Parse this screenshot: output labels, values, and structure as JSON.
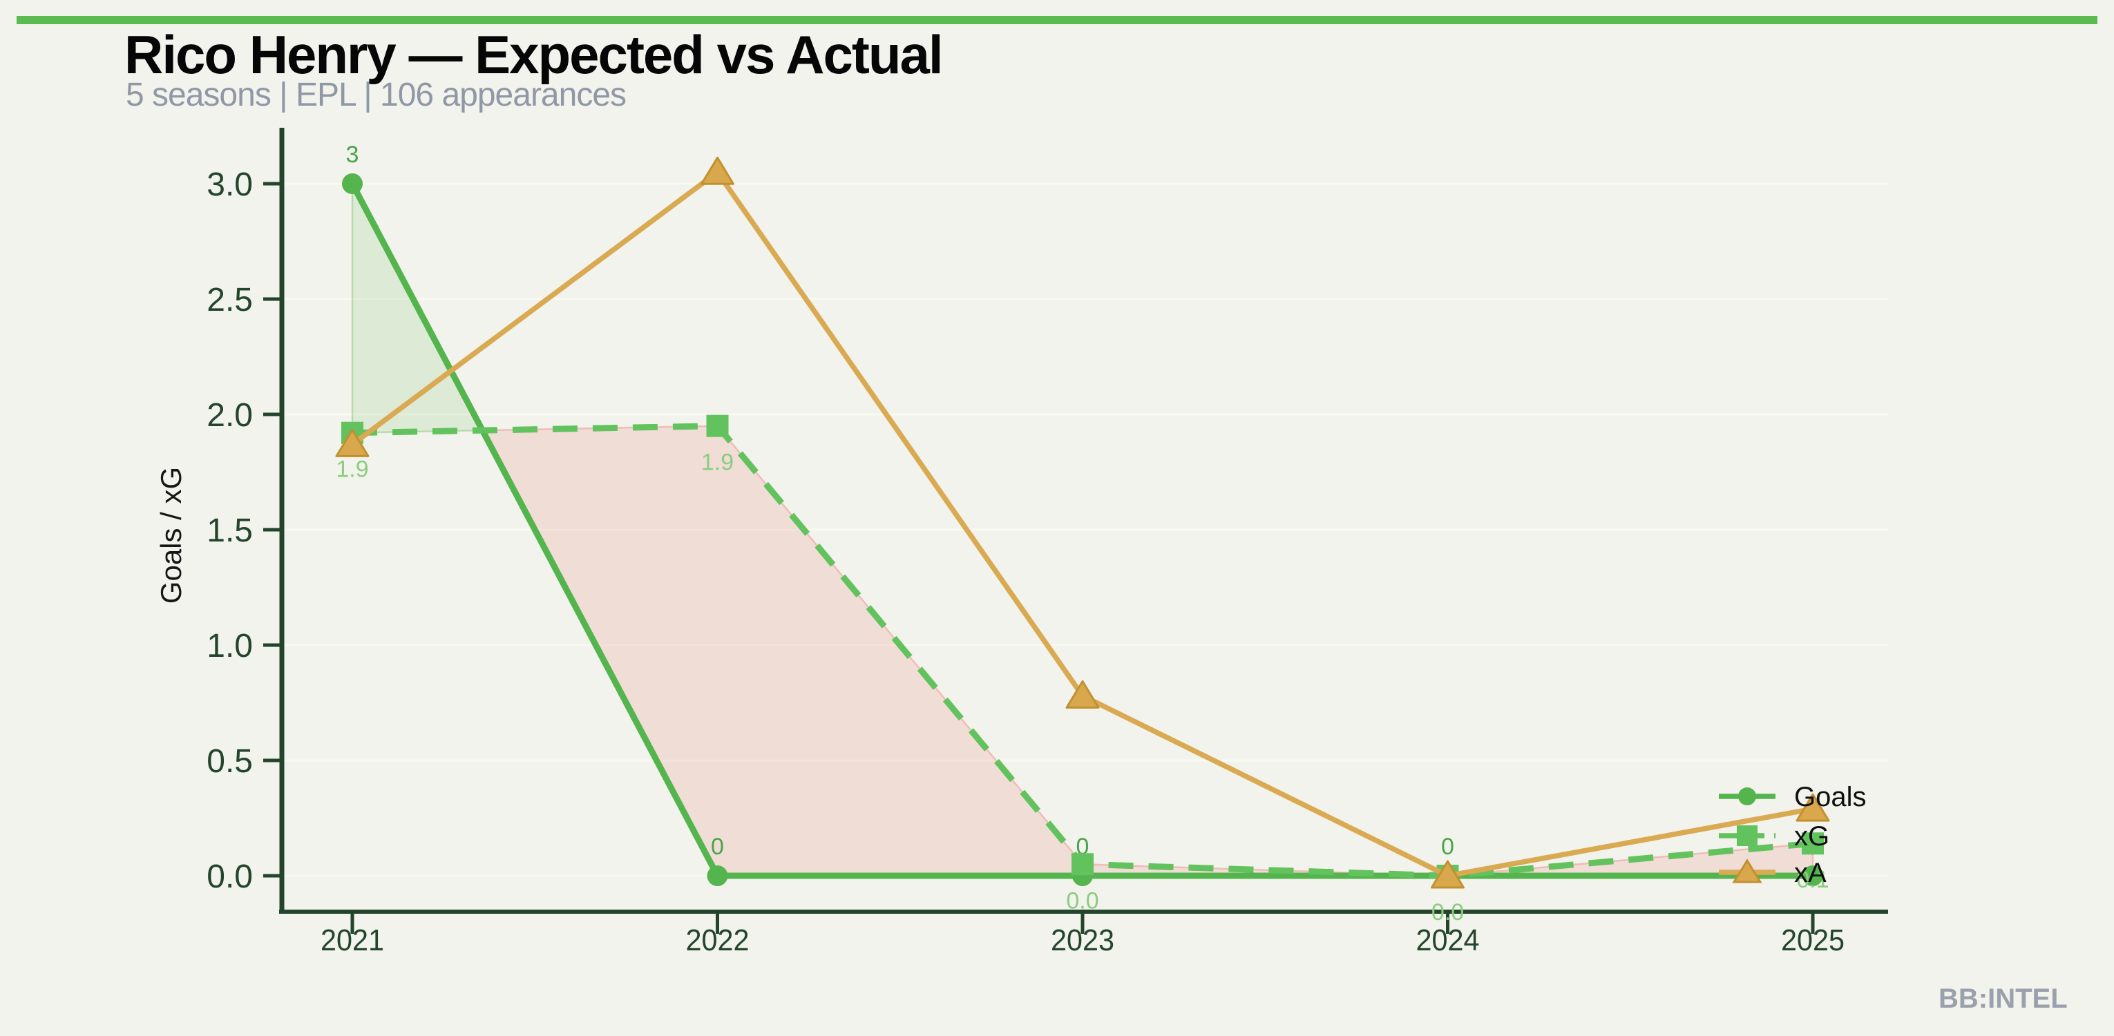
{
  "page": {
    "background": "#f2f3ec",
    "accent_bar_color": "#5bbb50",
    "watermark": "BB:INTEL"
  },
  "header": {
    "title": "Rico Henry — Expected vs Actual",
    "subtitle": "5 seasons | EPL | 106 appearances"
  },
  "chart_data": {
    "type": "line",
    "title": "Rico Henry — Expected vs Actual",
    "x": [
      2021,
      2022,
      2023,
      2024,
      2025
    ],
    "series": [
      {
        "name": "Goals",
        "values": [
          3,
          0,
          0,
          0,
          0
        ],
        "labels": [
          "3",
          "0",
          "0",
          "0",
          "0"
        ],
        "label_side": "above",
        "label_color": "#4ba44a",
        "color": "#54b44e",
        "marker": "circle",
        "style": "solid"
      },
      {
        "name": "xG",
        "values": [
          1.92,
          1.95,
          0.05,
          0.0,
          0.14
        ],
        "labels": [
          "1.9",
          "1.9",
          "0.0",
          "0.0",
          "0.1"
        ],
        "label_side": "below",
        "label_color": "#8bcd7f",
        "color": "#62c25d",
        "marker": "square",
        "style": "dashed"
      },
      {
        "name": "xA",
        "values": [
          1.87,
          3.05,
          0.78,
          0.0,
          0.29
        ],
        "labels": [],
        "label_side": "below",
        "label_color": "#d9a84c",
        "color": "#d9aa52",
        "marker": "triangle",
        "marker_fill": "#d9a84c",
        "marker_edge": "#c2912f",
        "style": "solid"
      }
    ],
    "xlabel": "",
    "ylabel": "Goals / xG",
    "yticks": [
      0.0,
      0.5,
      1.0,
      1.5,
      2.0,
      2.5,
      3.0
    ],
    "ytick_labels": [
      "0.0",
      "0.5",
      "1.0",
      "1.5",
      "2.0",
      "2.5",
      "3.0"
    ],
    "ylim": [
      0,
      3.2
    ],
    "grid": true,
    "axis_color": "#23452b",
    "grid_color": "#f8f9f1",
    "fills": {
      "between": [
        "Goals",
        "xG"
      ],
      "positive_color": "rgba(110,185,100,0.16)",
      "positive_edge": "rgba(130,195,115,0.45)",
      "negative_color": "rgba(232,110,105,0.17)",
      "negative_edge": "rgba(240,160,155,0.6)"
    },
    "legend": {
      "position": "lower right",
      "entries": [
        "Goals",
        "xG",
        "xA"
      ],
      "text_color": "#101010"
    }
  }
}
